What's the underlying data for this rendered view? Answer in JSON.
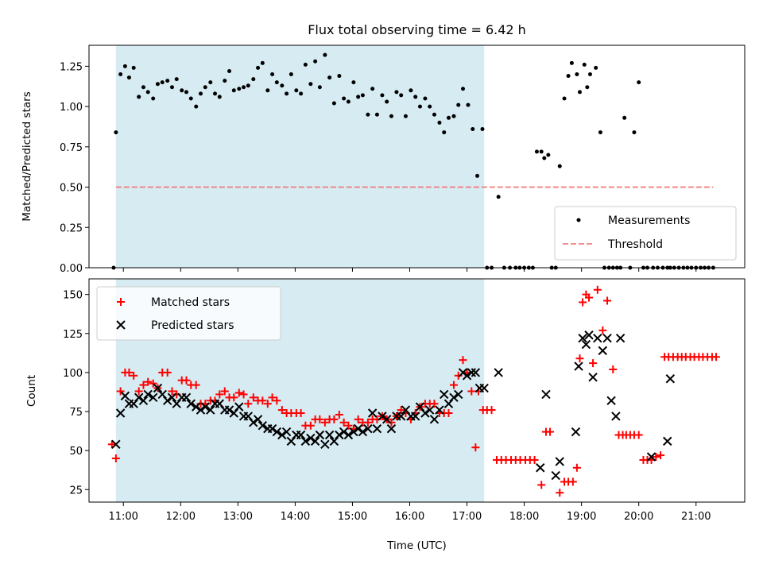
{
  "title": "Flux total observing time = 6.42 h",
  "colors": {
    "shade": "#add8e6",
    "measure": "#000000",
    "threshold": "#f08080",
    "matched": "#ff0000",
    "predicted": "#000000"
  },
  "chart_data": [
    {
      "type": "scatter",
      "name": "top",
      "ylabel": "Matched/Predicted stars",
      "xlim": [
        10.4,
        21.85
      ],
      "ylim": [
        0,
        1.38
      ],
      "yticks": [
        0.0,
        0.25,
        0.5,
        0.75,
        1.0,
        1.25
      ],
      "ytick_labels": [
        "0.00",
        "0.25",
        "0.50",
        "0.75",
        "1.00",
        "1.25"
      ],
      "shaded_span": [
        10.87,
        17.3
      ],
      "threshold": {
        "name": "Threshold",
        "y": 0.5,
        "x_range": [
          10.87,
          21.3
        ]
      },
      "legend": {
        "position": "lower-right",
        "entries": [
          "Measurements",
          "Threshold"
        ]
      },
      "series": [
        {
          "name": "Measurements",
          "marker": "dot",
          "x": [
            10.83,
            10.87,
            10.95,
            11.03,
            11.1,
            11.18,
            11.27,
            11.35,
            11.43,
            11.52,
            11.6,
            11.68,
            11.77,
            11.85,
            11.93,
            12.02,
            12.1,
            12.18,
            12.27,
            12.35,
            12.43,
            12.52,
            12.6,
            12.68,
            12.77,
            12.85,
            12.93,
            13.02,
            13.1,
            13.18,
            13.27,
            13.35,
            13.43,
            13.52,
            13.6,
            13.68,
            13.77,
            13.85,
            13.93,
            14.02,
            14.1,
            14.18,
            14.27,
            14.35,
            14.43,
            14.52,
            14.6,
            14.68,
            14.77,
            14.85,
            14.93,
            15.02,
            15.1,
            15.18,
            15.27,
            15.35,
            15.43,
            15.52,
            15.6,
            15.68,
            15.77,
            15.85,
            15.93,
            16.02,
            16.1,
            16.18,
            16.27,
            16.35,
            16.43,
            16.52,
            16.6,
            16.68,
            16.77,
            16.85,
            16.93,
            17.02,
            17.1,
            17.18,
            17.27,
            17.35,
            17.43,
            17.55,
            17.65,
            17.75,
            17.85,
            17.92,
            18.0,
            18.08,
            18.15,
            18.22,
            18.3,
            18.35,
            18.42,
            18.48,
            18.55,
            18.62,
            18.7,
            18.77,
            18.83,
            18.92,
            18.97,
            19.05,
            19.1,
            19.15,
            19.25,
            19.33,
            19.4,
            19.48,
            19.55,
            19.62,
            19.68,
            19.75,
            19.85,
            19.92,
            20.0,
            20.08,
            20.15,
            20.25,
            20.33,
            20.42,
            20.5,
            20.55,
            20.62,
            20.7,
            20.78,
            20.85,
            20.92,
            21.0,
            21.08,
            21.15,
            21.22,
            21.3
          ],
          "y": [
            0.0,
            0.84,
            1.2,
            1.25,
            1.18,
            1.24,
            1.06,
            1.12,
            1.09,
            1.05,
            1.14,
            1.15,
            1.16,
            1.12,
            1.17,
            1.1,
            1.09,
            1.05,
            1.0,
            1.08,
            1.12,
            1.15,
            1.08,
            1.06,
            1.16,
            1.22,
            1.1,
            1.11,
            1.12,
            1.13,
            1.17,
            1.24,
            1.27,
            1.1,
            1.2,
            1.15,
            1.13,
            1.08,
            1.2,
            1.1,
            1.08,
            1.26,
            1.14,
            1.28,
            1.12,
            1.32,
            1.18,
            1.02,
            1.19,
            1.05,
            1.03,
            1.15,
            1.06,
            1.07,
            0.95,
            1.11,
            0.95,
            1.07,
            1.03,
            0.94,
            1.09,
            1.07,
            0.94,
            1.1,
            1.06,
            1.0,
            1.05,
            1.0,
            0.95,
            0.9,
            0.84,
            0.93,
            0.94,
            1.01,
            1.11,
            1.01,
            0.86,
            0.57,
            0.86,
            0.0,
            0.0,
            0.44,
            0.0,
            0.0,
            0.0,
            0.0,
            0.0,
            0.0,
            0.0,
            0.72,
            0.72,
            0.68,
            0.7,
            0.0,
            0.0,
            0.63,
            1.05,
            1.19,
            1.27,
            1.2,
            1.09,
            1.26,
            1.12,
            1.2,
            1.24,
            0.84,
            0.0,
            0.0,
            0.0,
            0.0,
            0.0,
            0.93,
            0.0,
            0.84,
            1.15,
            0.0,
            0.0,
            0.0,
            0.0,
            0.0,
            0.0,
            0.0,
            0.0,
            0.0,
            0.0,
            0.0,
            0.0,
            0.0,
            0.0,
            0.0,
            0.0,
            0.0
          ]
        }
      ]
    },
    {
      "type": "scatter",
      "name": "bottom",
      "ylabel": "Count",
      "xlabel": "Time (UTC)",
      "xlim": [
        10.4,
        21.85
      ],
      "ylim": [
        17,
        160
      ],
      "yticks": [
        25,
        50,
        75,
        100,
        125,
        150
      ],
      "ytick_labels": [
        "25",
        "50",
        "75",
        "100",
        "125",
        "150"
      ],
      "xticks": [
        11,
        12,
        13,
        14,
        15,
        16,
        17,
        18,
        19,
        20,
        21
      ],
      "xtick_labels": [
        "11:00",
        "12:00",
        "13:00",
        "14:00",
        "15:00",
        "16:00",
        "17:00",
        "18:00",
        "19:00",
        "20:00",
        "21:00"
      ],
      "shaded_span": [
        10.87,
        17.3
      ],
      "legend": {
        "position": "upper-left",
        "entries": [
          "Matched stars",
          "Predicted stars"
        ]
      },
      "series": [
        {
          "name": "Matched stars",
          "marker": "plus",
          "x": [
            10.8,
            10.87,
            10.95,
            11.03,
            11.1,
            11.18,
            11.27,
            11.35,
            11.43,
            11.52,
            11.6,
            11.68,
            11.77,
            11.85,
            11.93,
            12.02,
            12.1,
            12.18,
            12.27,
            12.35,
            12.43,
            12.52,
            12.6,
            12.68,
            12.77,
            12.85,
            12.93,
            13.02,
            13.1,
            13.18,
            13.27,
            13.35,
            13.43,
            13.52,
            13.6,
            13.68,
            13.77,
            13.85,
            13.93,
            14.02,
            14.1,
            14.18,
            14.27,
            14.35,
            14.43,
            14.52,
            14.6,
            14.68,
            14.77,
            14.85,
            14.93,
            15.02,
            15.1,
            15.18,
            15.27,
            15.35,
            15.43,
            15.52,
            15.6,
            15.68,
            15.77,
            15.85,
            15.93,
            16.02,
            16.1,
            16.18,
            16.27,
            16.35,
            16.43,
            16.52,
            16.6,
            16.68,
            16.77,
            16.85,
            16.93,
            17.0,
            17.08,
            17.15,
            17.2,
            17.28,
            17.35,
            17.43,
            17.52,
            17.6,
            17.68,
            17.77,
            17.85,
            17.93,
            18.02,
            18.1,
            18.18,
            18.3,
            18.38,
            18.45,
            18.62,
            18.7,
            18.77,
            18.85,
            18.92,
            18.97,
            19.02,
            19.08,
            19.13,
            19.2,
            19.28,
            19.37,
            19.45,
            19.55,
            19.65,
            19.72,
            19.78,
            19.85,
            19.92,
            20.0,
            20.08,
            20.15,
            20.22,
            20.3,
            20.38,
            20.45,
            20.52,
            20.6,
            20.68,
            20.75,
            20.82,
            20.9,
            20.97,
            21.05,
            21.12,
            21.2,
            21.28,
            21.35
          ],
          "y": [
            54,
            45,
            88,
            100,
            100,
            98,
            88,
            92,
            94,
            93,
            90,
            100,
            100,
            88,
            86,
            95,
            95,
            92,
            92,
            80,
            80,
            82,
            82,
            86,
            88,
            84,
            84,
            87,
            86,
            80,
            84,
            82,
            82,
            80,
            84,
            82,
            76,
            74,
            74,
            74,
            74,
            66,
            66,
            70,
            70,
            68,
            70,
            70,
            73,
            68,
            66,
            64,
            70,
            68,
            68,
            70,
            70,
            72,
            70,
            68,
            72,
            76,
            74,
            70,
            74,
            78,
            80,
            80,
            80,
            74,
            74,
            74,
            92,
            98,
            108,
            100,
            88,
            52,
            88,
            76,
            76,
            76,
            44,
            44,
            44,
            44,
            44,
            44,
            44,
            44,
            44,
            28,
            62,
            62,
            23,
            30,
            30,
            30,
            39,
            109,
            145,
            150,
            148,
            106,
            153,
            127,
            146,
            102,
            60,
            60,
            60,
            60,
            60,
            60,
            44,
            44,
            44,
            46,
            47,
            110,
            110,
            110,
            110,
            110,
            110,
            110,
            110,
            110,
            110,
            110,
            110,
            110
          ]
        },
        {
          "name": "Predicted stars",
          "marker": "x",
          "x": [
            10.87,
            10.95,
            11.03,
            11.1,
            11.18,
            11.27,
            11.35,
            11.43,
            11.52,
            11.6,
            11.68,
            11.77,
            11.85,
            11.93,
            12.02,
            12.1,
            12.18,
            12.27,
            12.35,
            12.43,
            12.52,
            12.6,
            12.68,
            12.77,
            12.85,
            12.93,
            13.02,
            13.1,
            13.18,
            13.27,
            13.35,
            13.43,
            13.52,
            13.6,
            13.68,
            13.77,
            13.85,
            13.93,
            14.02,
            14.1,
            14.18,
            14.27,
            14.35,
            14.43,
            14.52,
            14.6,
            14.68,
            14.77,
            14.85,
            14.93,
            15.02,
            15.1,
            15.18,
            15.27,
            15.35,
            15.43,
            15.52,
            15.6,
            15.68,
            15.77,
            15.85,
            15.93,
            16.02,
            16.1,
            16.18,
            16.27,
            16.35,
            16.43,
            16.52,
            16.6,
            16.68,
            16.77,
            16.85,
            16.93,
            17.0,
            17.08,
            17.15,
            17.22,
            17.3,
            17.55,
            18.28,
            18.38,
            18.55,
            18.62,
            18.9,
            18.95,
            19.02,
            19.08,
            19.13,
            19.2,
            19.28,
            19.37,
            19.45,
            19.52,
            19.6,
            19.68,
            20.22,
            20.5,
            20.55
          ],
          "y": [
            54,
            74,
            85,
            80,
            80,
            84,
            82,
            86,
            84,
            90,
            86,
            82,
            84,
            80,
            84,
            84,
            80,
            78,
            76,
            78,
            76,
            80,
            80,
            76,
            76,
            74,
            78,
            72,
            72,
            68,
            70,
            66,
            64,
            64,
            62,
            60,
            62,
            56,
            60,
            60,
            56,
            58,
            56,
            60,
            54,
            60,
            56,
            60,
            62,
            60,
            62,
            64,
            62,
            64,
            74,
            64,
            72,
            70,
            64,
            72,
            72,
            76,
            72,
            72,
            78,
            74,
            76,
            70,
            76,
            86,
            80,
            84,
            86,
            100,
            98,
            100,
            100,
            90,
            90,
            100,
            39,
            86,
            34,
            43,
            62,
            104,
            122,
            118,
            124,
            97,
            122,
            114,
            122,
            82,
            72,
            122,
            46,
            56,
            96
          ]
        }
      ]
    }
  ]
}
